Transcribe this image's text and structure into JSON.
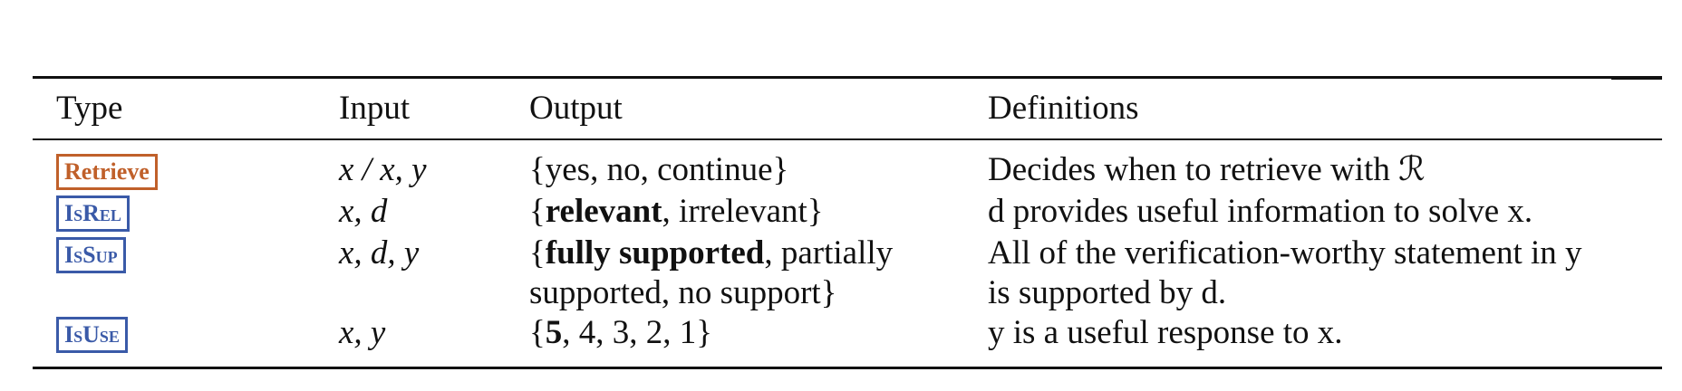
{
  "table": {
    "headers": {
      "type": "Type",
      "input": "Input",
      "output": "Output",
      "definitions": "Definitions"
    },
    "rows": [
      {
        "type": "Retrieve",
        "type_color": "#c0602a",
        "input": "x / x, y",
        "output": "{yes, no, continue}",
        "definition": "Decides when to retrieve with ℛ"
      },
      {
        "type": "IsRel",
        "type_color": "#3a5aa8",
        "input": "x, d",
        "output_bold": "relevant",
        "output_rest": ", irrelevant}",
        "definition": "d provides useful information to solve x."
      },
      {
        "type": "IsSup",
        "type_color": "#3a5aa8",
        "input": "x, d, y",
        "output_bold": "fully supported",
        "output_rest": ", partially",
        "output_line2": "supported, no support}",
        "definition": "All of the verification-worthy statement in y",
        "definition_line2": "is supported by d."
      },
      {
        "type": "IsUse",
        "type_color": "#3a5aa8",
        "input": "x, y",
        "output_bold": "5",
        "output_rest": ", 4, 3, 2, 1}",
        "definition": "y is a useful response to x."
      }
    ]
  }
}
